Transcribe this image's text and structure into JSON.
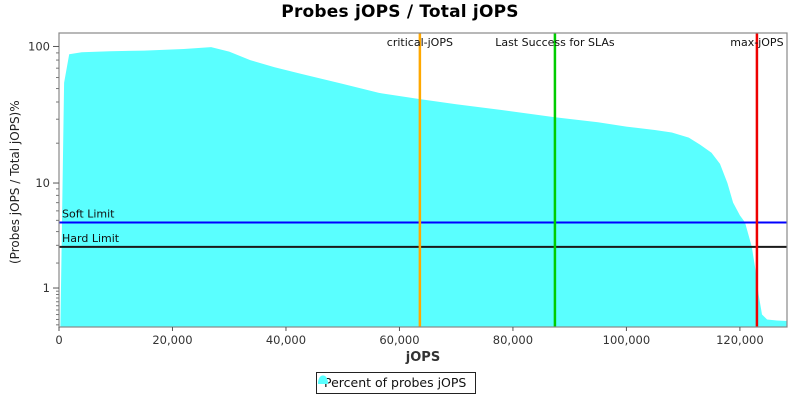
{
  "chart_data": {
    "type": "area",
    "title": "Probes jOPS / Total jOPS",
    "xlabel": "jOPS",
    "ylabel": "(Probes jOPS / Total jOPS)%",
    "grid": false,
    "x_axis": {
      "min": 0,
      "max": 128300,
      "ticks": [
        {
          "v": 0,
          "label": "0"
        },
        {
          "v": 20000,
          "label": "20,000"
        },
        {
          "v": 40000,
          "label": "40,000"
        },
        {
          "v": 60000,
          "label": "60,000"
        },
        {
          "v": 80000,
          "label": "80,000"
        },
        {
          "v": 100000,
          "label": "100,000"
        },
        {
          "v": 120000,
          "label": "120,000"
        }
      ]
    },
    "y_axis": {
      "scale": "adjusted-log10 (log10(v+1))",
      "min": 0.062,
      "max": 124.7,
      "major_ticks": [
        {
          "v": 100,
          "label": "100"
        },
        {
          "v": 10,
          "label": "10"
        },
        {
          "v": 1,
          "label": "1"
        }
      ],
      "minor_ticks": [
        90,
        80,
        70,
        60,
        50,
        40,
        30,
        20,
        9,
        8,
        7,
        6,
        5,
        4,
        3,
        2,
        0.9,
        0.8,
        0.7,
        0.6,
        0.5,
        0.4,
        0.3,
        0.2,
        0.1
      ]
    },
    "series": [
      {
        "name": "Percent of probes jOPS",
        "color": "#5AFFFF",
        "points": [
          [
            250,
            0.06
          ],
          [
            900,
            55
          ],
          [
            1800,
            88
          ],
          [
            4000,
            91
          ],
          [
            9000,
            92.5
          ],
          [
            15000,
            93.5
          ],
          [
            22000,
            96
          ],
          [
            26800,
            99
          ],
          [
            30000,
            92
          ],
          [
            33700,
            80
          ],
          [
            38000,
            71
          ],
          [
            42500,
            64
          ],
          [
            50000,
            54
          ],
          [
            56400,
            46.5
          ],
          [
            63600,
            42
          ],
          [
            70000,
            38.5
          ],
          [
            78000,
            35
          ],
          [
            87400,
            31
          ],
          [
            95000,
            28.5
          ],
          [
            100000,
            26.5
          ],
          [
            105000,
            25
          ],
          [
            108000,
            24
          ],
          [
            111000,
            22
          ],
          [
            113000,
            19.5
          ],
          [
            115000,
            17
          ],
          [
            116500,
            14
          ],
          [
            117800,
            10
          ],
          [
            118800,
            7
          ],
          [
            120000,
            5.5
          ],
          [
            120900,
            4.8
          ],
          [
            122100,
            2.9
          ],
          [
            122800,
            1.6
          ],
          [
            123300,
            0.8
          ],
          [
            123900,
            0.3
          ],
          [
            124800,
            0.2
          ],
          [
            126500,
            0.18
          ],
          [
            128300,
            0.17
          ]
        ]
      }
    ],
    "vlines": [
      {
        "label": "critical-jOPS",
        "x": 63600,
        "color": "#FFA800"
      },
      {
        "label": "Last Success for SLAs",
        "x": 87400,
        "color": "#00CC00"
      },
      {
        "label": "max-jOPS",
        "x": 123000,
        "color": "#EE0000"
      }
    ],
    "hlines": [
      {
        "label": "Soft Limit",
        "y": 4.8,
        "color": "#0000FF"
      },
      {
        "label": "Hard Limit",
        "y": 2.9,
        "color": "#1A1A1A"
      }
    ],
    "legend": {
      "position": "bottom",
      "items": [
        {
          "label": "Percent of probes jOPS",
          "color": "#5AFFFF"
        }
      ]
    },
    "frame_color": "#888888",
    "tick_label_color": "#333333"
  }
}
